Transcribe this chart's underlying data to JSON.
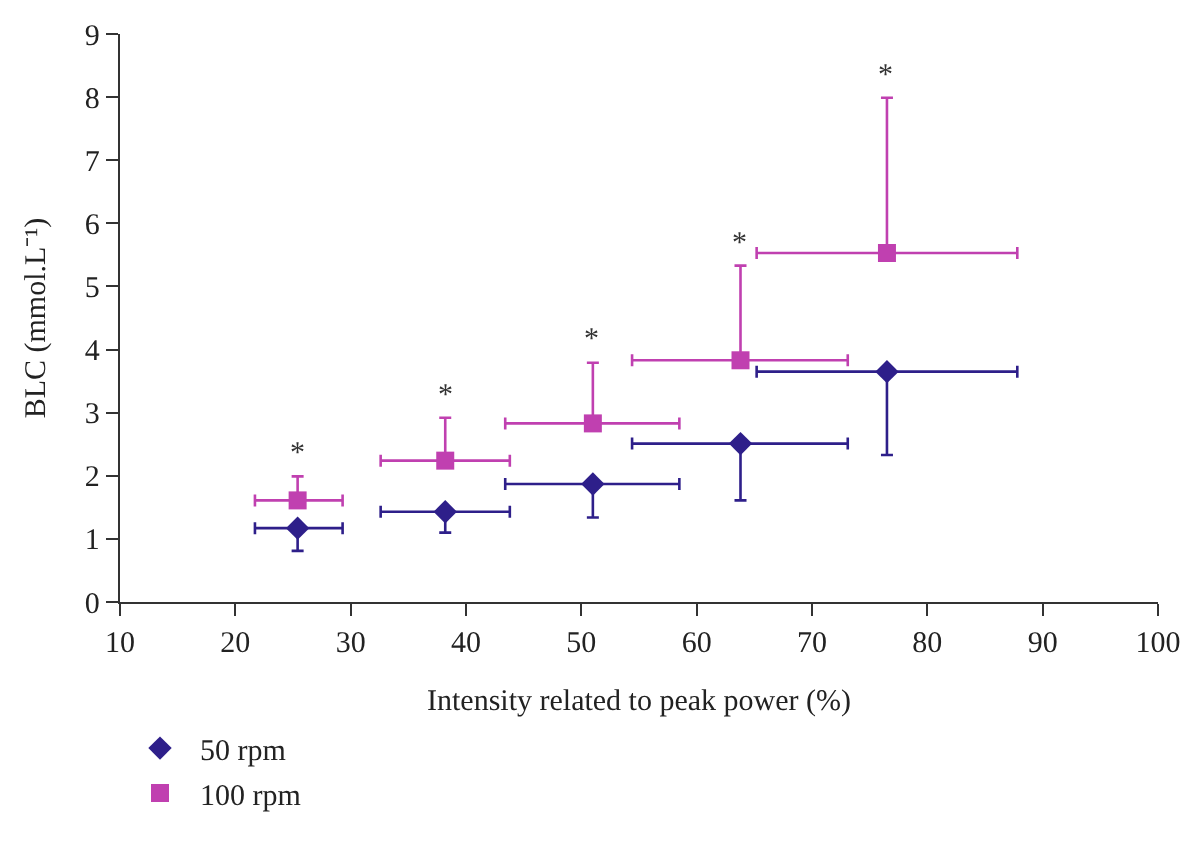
{
  "chart_data": {
    "type": "scatter",
    "xlabel": "Intensity related to peak power (%)",
    "ylabel": "BLC (mmol.L⁻¹)",
    "x": [
      25.4,
      38.2,
      51.0,
      63.8,
      76.5
    ],
    "series": [
      {
        "name": "50 rpm",
        "color": "#2e1f8a",
        "marker": "diamond",
        "values": [
          1.17,
          1.43,
          1.87,
          2.51,
          3.65
        ],
        "errors": [
          [
            0.81,
            1.17
          ],
          [
            1.1,
            1.43
          ],
          [
            1.34,
            1.87
          ],
          [
            1.61,
            2.51
          ],
          [
            2.33,
            3.65
          ]
        ],
        "xerrors": [
          [
            21.7,
            29.3
          ],
          [
            32.6,
            43.8
          ],
          [
            43.4,
            58.5
          ],
          [
            54.4,
            73.1
          ],
          [
            65.2,
            87.8
          ]
        ]
      },
      {
        "name": "100 rpm",
        "color": "#c040b0",
        "marker": "square",
        "values": [
          1.61,
          2.24,
          2.83,
          3.83,
          5.53
        ],
        "errors": [
          [
            1.61,
            1.99
          ],
          [
            2.24,
            2.92
          ],
          [
            2.83,
            3.79
          ],
          [
            3.83,
            5.33
          ],
          [
            5.53,
            7.99
          ]
        ],
        "xerrors": [
          [
            21.7,
            29.3
          ],
          [
            32.6,
            43.8
          ],
          [
            43.4,
            58.5
          ],
          [
            54.4,
            73.1
          ],
          [
            65.2,
            87.8
          ]
        ]
      }
    ],
    "annotations": [
      {
        "text": "*",
        "x": 25.4,
        "y": 1.99
      },
      {
        "text": "*",
        "x": 38.2,
        "y": 2.92
      },
      {
        "text": "*",
        "x": 51.0,
        "y": 3.79
      },
      {
        "text": "*",
        "x": 63.8,
        "y": 5.33
      },
      {
        "text": "*",
        "x": 76.5,
        "y": 7.99
      }
    ],
    "xlim": [
      10,
      100
    ],
    "xticks": [
      10,
      20,
      30,
      40,
      50,
      60,
      70,
      80,
      90,
      100
    ],
    "ylim": [
      0,
      9
    ],
    "yticks": [
      0,
      1,
      2,
      3,
      4,
      5,
      6,
      7,
      8,
      9
    ],
    "legend": "bottom left"
  }
}
